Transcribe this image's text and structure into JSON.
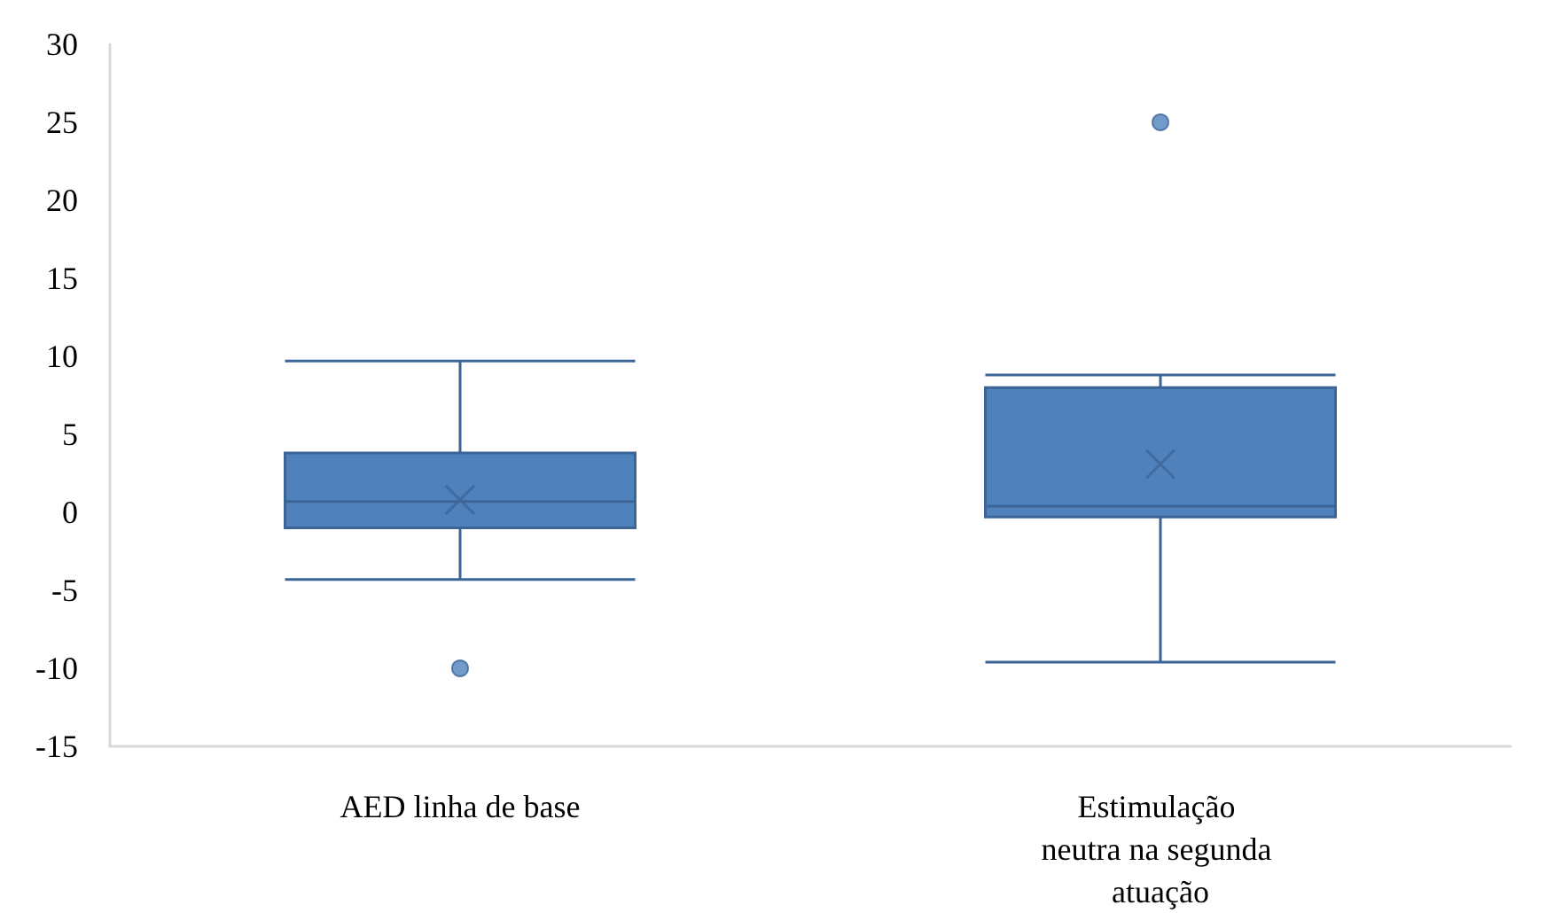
{
  "chart_data": {
    "type": "box",
    "categories": [
      "AED linha de base",
      "Estimulação neutra na segunda atuação"
    ],
    "series": [
      {
        "color": "#4f81bd",
        "boxes": [
          {
            "low": -4.3,
            "q1": -1.0,
            "median": 0.7,
            "q3": 3.8,
            "high": 9.7,
            "mean": 0.8,
            "outliers": [
              -10
            ]
          },
          {
            "low": -9.6,
            "q1": -0.3,
            "median": 0.4,
            "q3": 8.0,
            "high": 8.8,
            "mean": 3.1,
            "outliers": [
              25
            ]
          }
        ]
      }
    ],
    "ylim": [
      -15,
      30
    ],
    "yticks": [
      -15,
      -10,
      -5,
      0,
      5,
      10,
      15,
      20,
      25,
      30
    ],
    "grid": false
  }
}
